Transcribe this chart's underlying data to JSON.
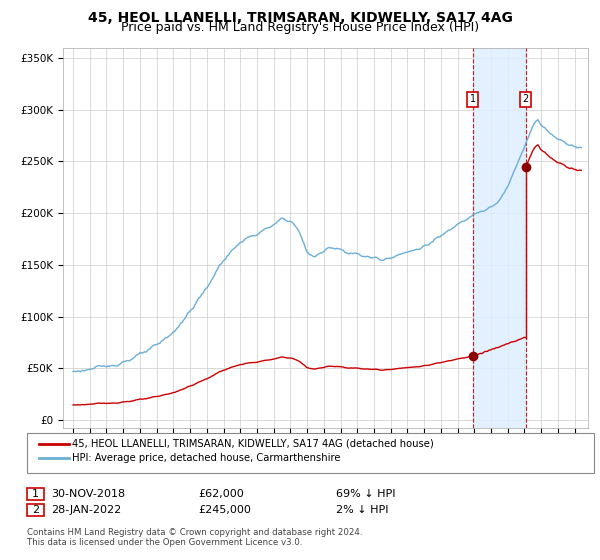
{
  "title1": "45, HEOL LLANELLI, TRIMSARAN, KIDWELLY, SA17 4AG",
  "title2": "Price paid vs. HM Land Registry's House Price Index (HPI)",
  "legend_line1": "45, HEOL LLANELLI, TRIMSARAN, KIDWELLY, SA17 4AG (detached house)",
  "legend_line2": "HPI: Average price, detached house, Carmarthenshire",
  "sale1_date": "30-NOV-2018",
  "sale1_price": 62000,
  "sale1_hpi_pct": "69% ↓ HPI",
  "sale2_date": "28-JAN-2022",
  "sale2_price": 245000,
  "sale2_hpi_pct": "2% ↓ HPI",
  "footnote": "Contains HM Land Registry data © Crown copyright and database right 2024.\nThis data is licensed under the Open Government Licence v3.0.",
  "hpi_color": "#6baed6",
  "price_color": "#cc0000",
  "sale_marker_color": "#8b0000",
  "vline_color": "#cc0000",
  "shade_color": "#ddeeff",
  "grid_color": "#cccccc",
  "bg_color": "#ffffff",
  "ylim_max": 360000,
  "sale1_year": 2018.92,
  "sale2_year": 2022.08,
  "sale1_value": 62000,
  "sale2_value": 245000,
  "title1_fontsize": 10,
  "title2_fontsize": 9
}
